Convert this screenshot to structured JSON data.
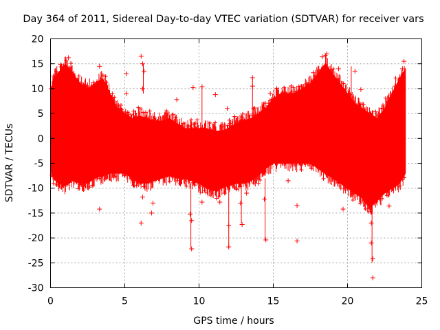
{
  "chart_data": {
    "type": "scatter",
    "title": "Day 364 of 2011, Sidereal Day-to-day VTEC variation (SDTVAR) for receiver vars",
    "xlabel": "GPS time / hours",
    "ylabel": "SDTVAR / TECUs",
    "xlim": [
      0,
      25
    ],
    "ylim": [
      -30,
      20
    ],
    "x_ticks": [
      0,
      5,
      10,
      15,
      20,
      25
    ],
    "y_ticks": [
      20,
      15,
      10,
      5,
      0,
      -5,
      -10,
      -15,
      -20,
      -25,
      -30
    ],
    "grid": true,
    "marker": "+",
    "series_color": "#ff0000",
    "series": [
      {
        "name": "SDTVAR",
        "envelope": {
          "x": [
            0,
            0.2,
            0.5,
            1.0,
            1.5,
            2.0,
            2.5,
            3.0,
            3.5,
            4.0,
            4.5,
            5.0,
            5.5,
            6.0,
            6.5,
            7.0,
            7.5,
            8.0,
            8.5,
            9.0,
            9.5,
            10.0,
            10.5,
            11.0,
            11.5,
            12.0,
            12.5,
            13.0,
            13.5,
            14.0,
            14.5,
            15.0,
            15.5,
            16.0,
            16.5,
            17.0,
            17.5,
            18.0,
            18.5,
            19.0,
            19.5,
            20.0,
            20.5,
            21.0,
            21.5,
            22.0,
            22.5,
            23.0,
            23.5,
            23.9
          ],
          "upper": [
            9,
            12,
            13,
            15,
            13,
            11,
            10,
            11,
            12,
            9,
            6,
            5,
            4,
            4.5,
            4,
            3.5,
            3.5,
            4,
            3,
            2,
            2,
            2,
            2,
            1.5,
            1.5,
            2,
            3,
            3.5,
            4,
            5,
            6,
            8,
            9,
            9,
            9,
            10,
            11,
            13,
            15,
            13,
            11,
            9,
            7,
            6,
            5,
            4,
            6,
            9,
            12,
            14
          ],
          "lower": [
            -6,
            -8,
            -9,
            -9.5,
            -8.5,
            -9,
            -9,
            -8,
            -7.5,
            -7,
            -7,
            -7,
            -8,
            -9,
            -9,
            -8.5,
            -8,
            -7.5,
            -8,
            -8,
            -8.5,
            -9,
            -10,
            -10.5,
            -10,
            -9.5,
            -9,
            -9,
            -8.5,
            -7.5,
            -6,
            -5,
            -5,
            -5,
            -5,
            -5,
            -5,
            -6,
            -7,
            -8,
            -9,
            -10,
            -11,
            -12,
            -14,
            -12.5,
            -11,
            -10,
            -9,
            -7
          ]
        },
        "outliers": [
          {
            "x": 0.2,
            "y": 12.5
          },
          {
            "x": 1.2,
            "y": 16.2
          },
          {
            "x": 3.3,
            "y": 14.5
          },
          {
            "x": 3.3,
            "y": -14.2
          },
          {
            "x": 5.1,
            "y": 13.0
          },
          {
            "x": 5.1,
            "y": 9.0
          },
          {
            "x": 6.1,
            "y": 16.5
          },
          {
            "x": 6.2,
            "y": 15.0
          },
          {
            "x": 6.3,
            "y": 13.5
          },
          {
            "x": 6.2,
            "y": 10.0
          },
          {
            "x": 6.1,
            "y": -17.0
          },
          {
            "x": 6.2,
            "y": -11.8
          },
          {
            "x": 6.8,
            "y": -15.0
          },
          {
            "x": 6.9,
            "y": -13.0
          },
          {
            "x": 8.5,
            "y": 7.8
          },
          {
            "x": 9.5,
            "y": -16.5
          },
          {
            "x": 9.5,
            "y": -22.2
          },
          {
            "x": 9.4,
            "y": -15.2
          },
          {
            "x": 9.6,
            "y": 10.2
          },
          {
            "x": 10.2,
            "y": 10.4
          },
          {
            "x": 10.2,
            "y": -12.8
          },
          {
            "x": 11.1,
            "y": 8.8
          },
          {
            "x": 11.4,
            "y": -12.8
          },
          {
            "x": 11.9,
            "y": 6.0
          },
          {
            "x": 12.1,
            "y": 3.0
          },
          {
            "x": 12.0,
            "y": -21.8
          },
          {
            "x": 12.0,
            "y": -17.5
          },
          {
            "x": 12.9,
            "y": -17.3
          },
          {
            "x": 12.8,
            "y": -13.0
          },
          {
            "x": 13.2,
            "y": -11.0
          },
          {
            "x": 13.6,
            "y": 10.5
          },
          {
            "x": 13.6,
            "y": 12.2
          },
          {
            "x": 14.5,
            "y": -20.4
          },
          {
            "x": 14.4,
            "y": -12.2
          },
          {
            "x": 14.8,
            "y": 9.0
          },
          {
            "x": 16.0,
            "y": -8.5
          },
          {
            "x": 16.6,
            "y": -13.5
          },
          {
            "x": 16.6,
            "y": -20.6
          },
          {
            "x": 17.7,
            "y": 13.2
          },
          {
            "x": 18.3,
            "y": 16.4
          },
          {
            "x": 18.6,
            "y": 17.0
          },
          {
            "x": 19.4,
            "y": 14.0
          },
          {
            "x": 19.3,
            "y": -7.5
          },
          {
            "x": 19.7,
            "y": -14.2
          },
          {
            "x": 20.3,
            "y": 7.0
          },
          {
            "x": 20.5,
            "y": 13.5
          },
          {
            "x": 20.6,
            "y": -5.5
          },
          {
            "x": 20.9,
            "y": 9.8
          },
          {
            "x": 21.1,
            "y": -7.0
          },
          {
            "x": 21.2,
            "y": -4.0
          },
          {
            "x": 21.6,
            "y": -17.0
          },
          {
            "x": 21.6,
            "y": -21.0
          },
          {
            "x": 21.7,
            "y": -24.2
          },
          {
            "x": 21.7,
            "y": -28.0
          },
          {
            "x": 22.2,
            "y": 3.0
          },
          {
            "x": 22.3,
            "y": 6.0
          },
          {
            "x": 22.8,
            "y": -13.6
          },
          {
            "x": 23.2,
            "y": 10.5
          },
          {
            "x": 23.8,
            "y": 15.5
          },
          {
            "x": 23.7,
            "y": 14.0
          }
        ],
        "spikes": [
          {
            "x": 6.25,
            "y1": 9,
            "y2": 15
          },
          {
            "x": 9.45,
            "y1": -9,
            "y2": -22
          },
          {
            "x": 10.2,
            "y1": 2,
            "y2": 10.5
          },
          {
            "x": 12.0,
            "y1": -10,
            "y2": -22
          },
          {
            "x": 12.85,
            "y1": -9,
            "y2": -17
          },
          {
            "x": 13.6,
            "y1": 4,
            "y2": 12
          },
          {
            "x": 14.45,
            "y1": -8,
            "y2": -20.5
          },
          {
            "x": 21.65,
            "y1": -12,
            "y2": -25
          },
          {
            "x": 20.25,
            "y1": 7,
            "y2": 14.5
          }
        ]
      }
    ]
  }
}
